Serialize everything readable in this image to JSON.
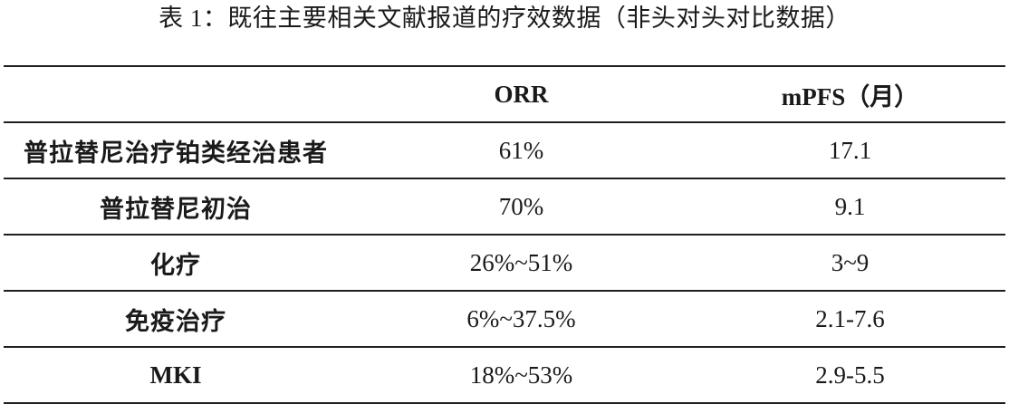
{
  "caption": "表 1：既往主要相关文献报道的疗效数据（非头对头对比数据）",
  "table": {
    "headers": [
      "",
      "ORR",
      "mPFS（月）"
    ],
    "rows": [
      {
        "label": "普拉替尼治疗铂类经治患者",
        "orr": "61%",
        "mpfs": "17.1"
      },
      {
        "label": "普拉替尼初治",
        "orr": "70%",
        "mpfs": "9.1"
      },
      {
        "label": "化疗",
        "orr": "26%~51%",
        "mpfs": "3~9"
      },
      {
        "label": "免疫治疗",
        "orr": "6%~37.5%",
        "mpfs": "2.1-7.6"
      },
      {
        "label": "MKI",
        "orr": "18%~53%",
        "mpfs": "2.9-5.5"
      }
    ]
  }
}
